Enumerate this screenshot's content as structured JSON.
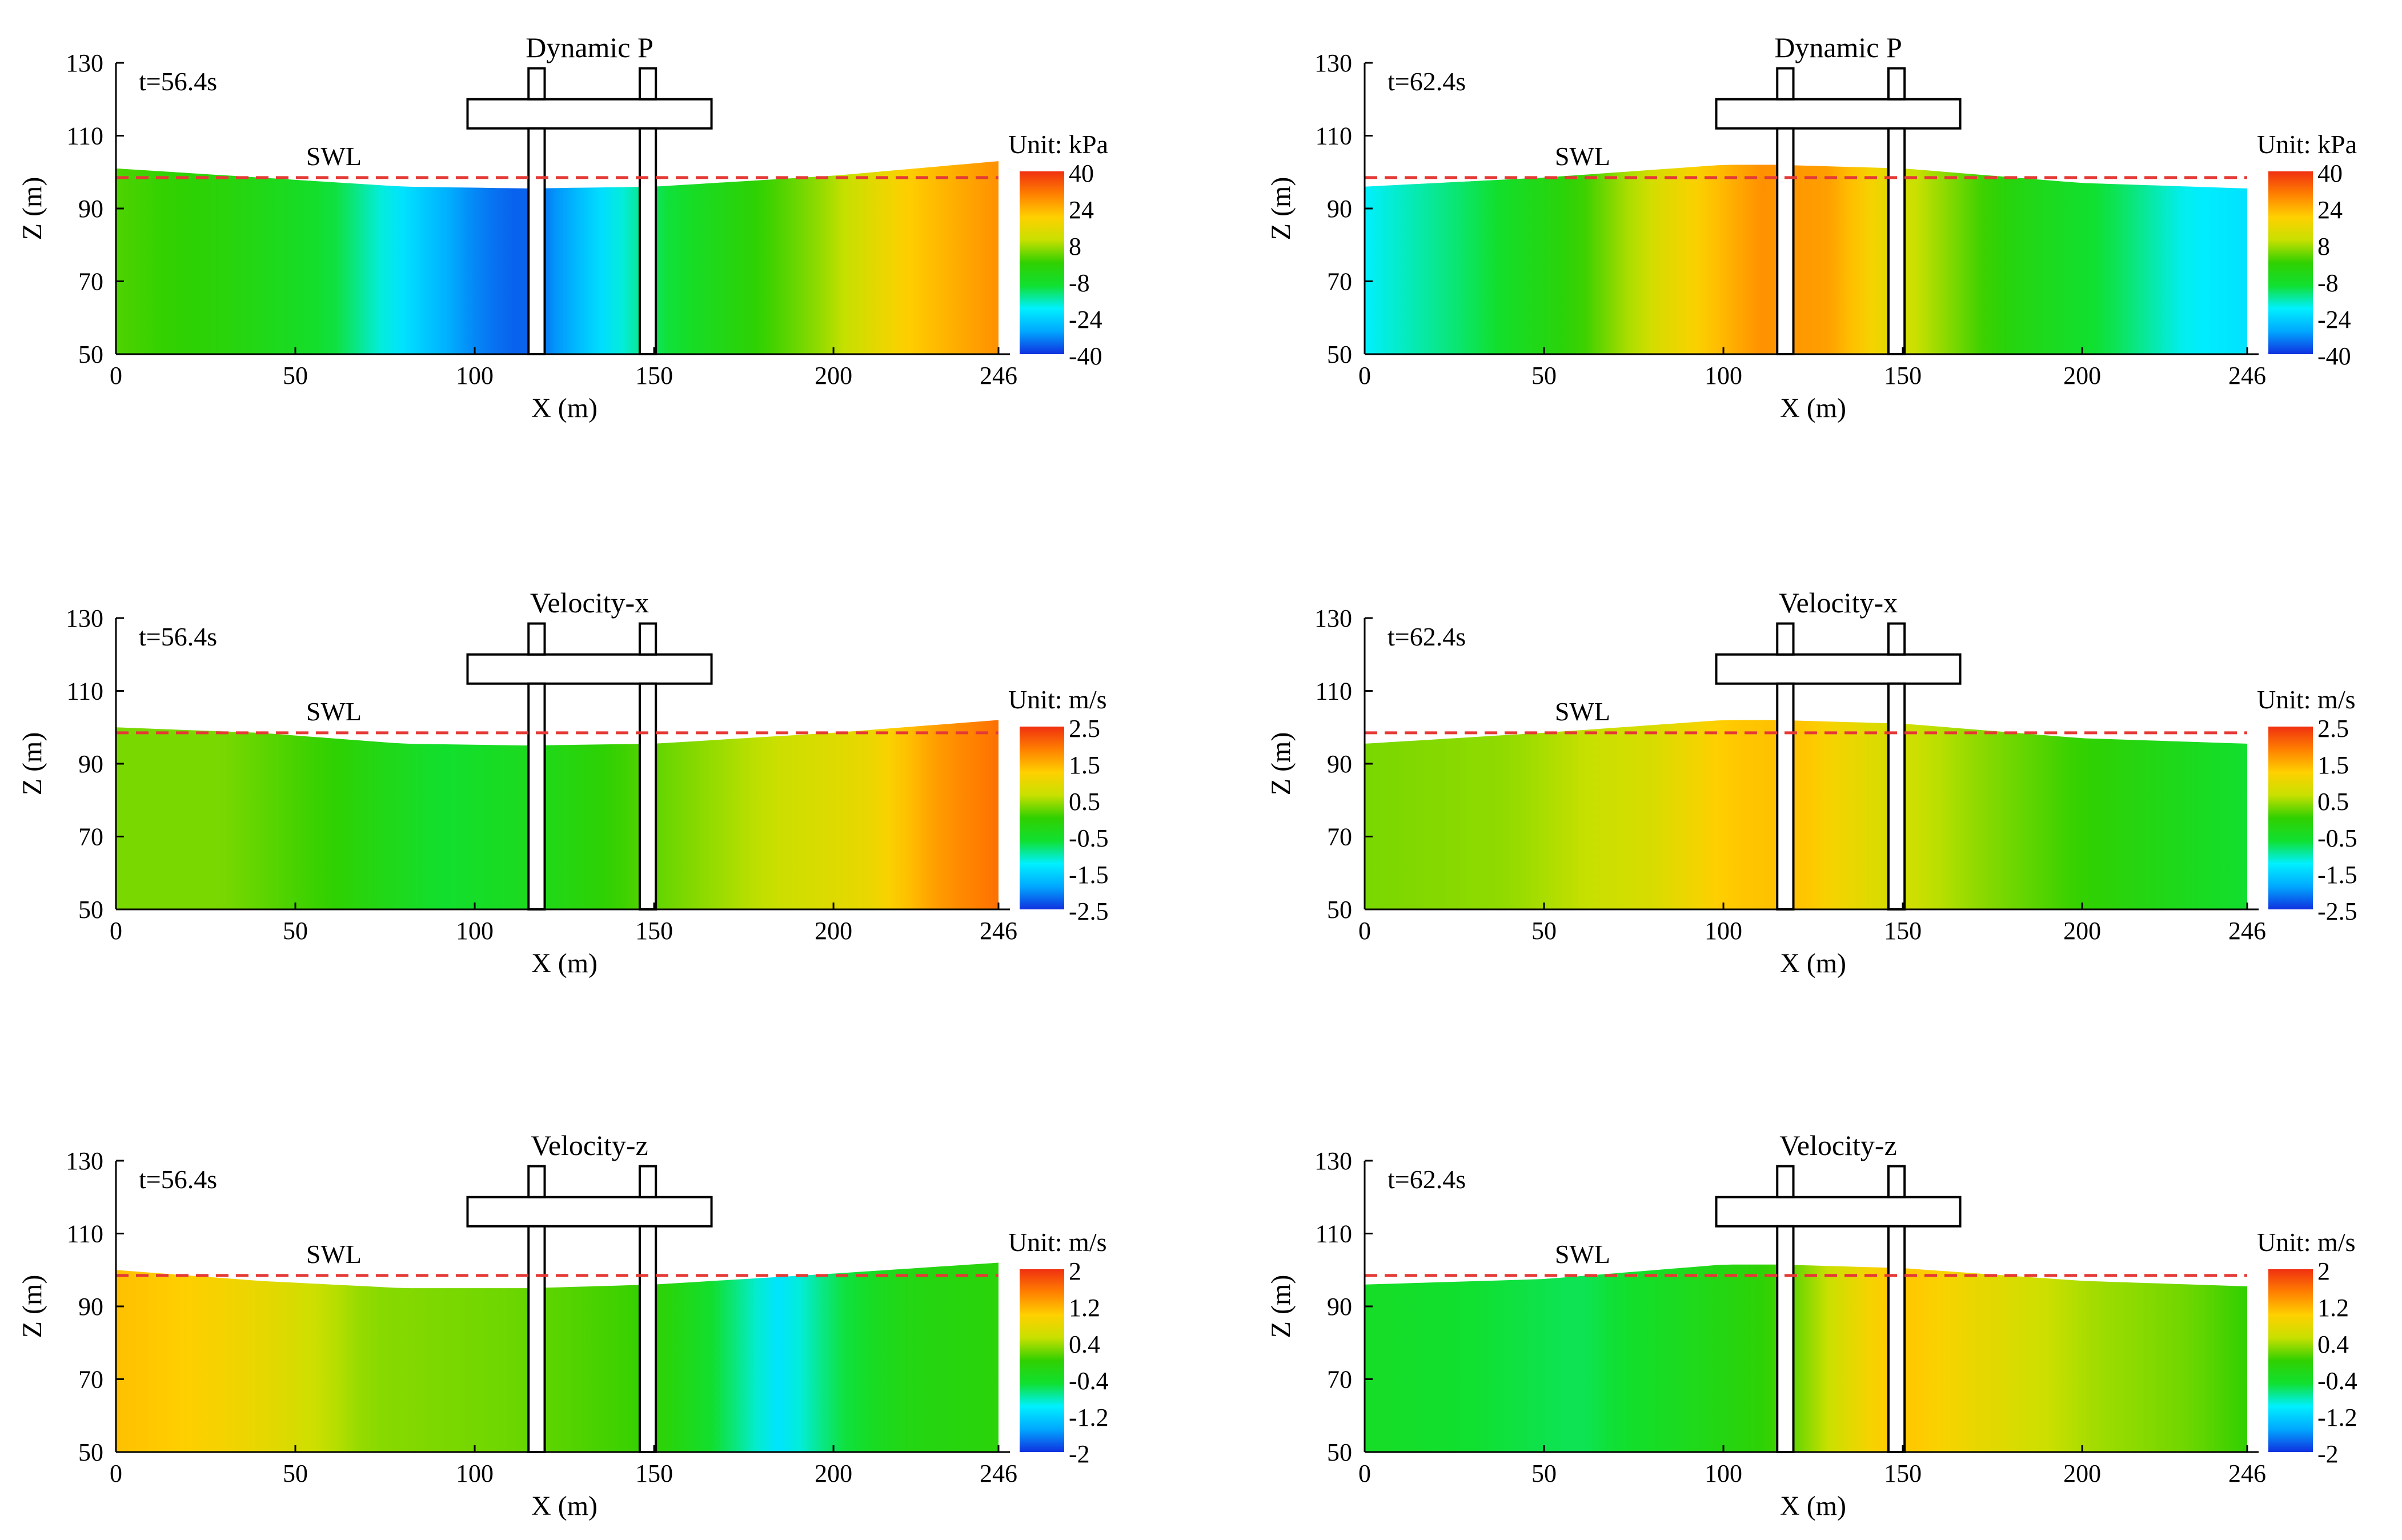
{
  "colors": {
    "swl_line": "#e53935",
    "axis": "#000000",
    "structure_fill": "#ffffff",
    "colormap": [
      "#1030e0",
      "#00a8ff",
      "#00f0ff",
      "#10e030",
      "#30d000",
      "#c8e000",
      "#ffd000",
      "#ff8000",
      "#f03010"
    ]
  },
  "labels": {
    "swl": "SWL",
    "xlabel": "X (m)",
    "ylabel": "Z (m)"
  },
  "chart_data": [
    {
      "type": "heatmap",
      "title": "Dynamic P",
      "time_label": "t=56.4s",
      "unit_label": "Unit: kPa",
      "xlabel": "X (m)",
      "ylabel": "Z (m)",
      "xlim": [
        0,
        246
      ],
      "ylim": [
        50,
        130
      ],
      "xticks": [
        "0",
        "50",
        "100",
        "150",
        "200",
        "246"
      ],
      "yticks": [
        "50",
        "70",
        "90",
        "110",
        "130"
      ],
      "colorbar": {
        "ticks": [
          "40",
          "24",
          "8",
          "-8",
          "-24",
          "-40"
        ],
        "vmin": -40,
        "vmax": 40
      },
      "swl": 98.5,
      "surface_x": [
        0,
        40,
        80,
        115,
        150,
        200,
        246
      ],
      "surface_z": [
        101,
        98.5,
        96,
        95.5,
        96,
        99,
        103
      ],
      "field_x": [
        0,
        30,
        60,
        80,
        100,
        115,
        150,
        180,
        200,
        220,
        246
      ],
      "field_values": [
        2,
        -2,
        -10,
        -22,
        -33,
        -37,
        -12,
        0,
        8,
        20,
        28
      ]
    },
    {
      "type": "heatmap",
      "title": "Dynamic P",
      "time_label": "t=62.4s",
      "unit_label": "Unit: kPa",
      "xlabel": "X (m)",
      "ylabel": "Z (m)",
      "xlim": [
        0,
        246
      ],
      "ylim": [
        50,
        130
      ],
      "xticks": [
        "0",
        "50",
        "100",
        "150",
        "200",
        "246"
      ],
      "yticks": [
        "50",
        "70",
        "90",
        "110",
        "130"
      ],
      "colorbar": {
        "ticks": [
          "40",
          "24",
          "8",
          "-8",
          "-24",
          "-40"
        ],
        "vmin": -40,
        "vmax": 40
      },
      "swl": 98.5,
      "surface_x": [
        0,
        50,
        100,
        115,
        150,
        200,
        246
      ],
      "surface_z": [
        96,
        98.5,
        102,
        102,
        101,
        97,
        95.5
      ],
      "field_x": [
        0,
        30,
        60,
        90,
        110,
        130,
        150,
        180,
        210,
        230,
        246
      ],
      "field_values": [
        -20,
        -12,
        0,
        18,
        28,
        26,
        12,
        -3,
        -12,
        -20,
        -22
      ]
    },
    {
      "type": "heatmap",
      "title": "Velocity-x",
      "time_label": "t=56.4s",
      "unit_label": "Unit: m/s",
      "xlabel": "X (m)",
      "ylabel": "Z (m)",
      "xlim": [
        0,
        246
      ],
      "ylim": [
        50,
        130
      ],
      "xticks": [
        "0",
        "50",
        "100",
        "150",
        "200",
        "246"
      ],
      "yticks": [
        "50",
        "70",
        "90",
        "110",
        "130"
      ],
      "colorbar": {
        "ticks": [
          "2.5",
          "1.5",
          "0.5",
          "-0.5",
          "-1.5",
          "-2.5"
        ],
        "vmin": -2.5,
        "vmax": 2.5
      },
      "swl": 98.5,
      "surface_x": [
        0,
        40,
        80,
        115,
        150,
        200,
        246
      ],
      "surface_z": [
        100,
        98.5,
        95.5,
        95,
        95.5,
        98.5,
        102
      ],
      "field_x": [
        0,
        30,
        60,
        90,
        115,
        150,
        180,
        210,
        230,
        246
      ],
      "field_values": [
        0.3,
        0.3,
        0.0,
        -0.6,
        -0.4,
        0.2,
        0.6,
        1.0,
        1.7,
        2.0
      ]
    },
    {
      "type": "heatmap",
      "title": "Velocity-x",
      "time_label": "t=62.4s",
      "unit_label": "Unit: m/s",
      "xlabel": "X (m)",
      "ylabel": "Z (m)",
      "xlim": [
        0,
        246
      ],
      "ylim": [
        50,
        130
      ],
      "xticks": [
        "0",
        "50",
        "100",
        "150",
        "200",
        "246"
      ],
      "yticks": [
        "50",
        "70",
        "90",
        "110",
        "130"
      ],
      "colorbar": {
        "ticks": [
          "2.5",
          "1.5",
          "0.5",
          "-0.5",
          "-1.5",
          "-2.5"
        ],
        "vmin": -2.5,
        "vmax": 2.5
      },
      "swl": 98.5,
      "surface_x": [
        0,
        50,
        100,
        115,
        150,
        200,
        246
      ],
      "surface_z": [
        95.5,
        98.5,
        102,
        102,
        101,
        97,
        95.5
      ],
      "field_x": [
        0,
        40,
        80,
        100,
        120,
        140,
        170,
        200,
        230,
        246
      ],
      "field_values": [
        0.3,
        0.4,
        0.8,
        1.3,
        1.4,
        0.9,
        0.4,
        0.0,
        -0.4,
        -0.6
      ]
    },
    {
      "type": "heatmap",
      "title": "Velocity-z",
      "time_label": "t=56.4s",
      "unit_label": "Unit: m/s",
      "xlabel": "X (m)",
      "ylabel": "Z (m)",
      "xlim": [
        0,
        246
      ],
      "ylim": [
        50,
        130
      ],
      "xticks": [
        "0",
        "50",
        "100",
        "150",
        "200",
        "246"
      ],
      "yticks": [
        "50",
        "70",
        "90",
        "110",
        "130"
      ],
      "colorbar": {
        "ticks": [
          "2",
          "1.2",
          "0.4",
          "-0.4",
          "-1.2",
          "-2"
        ],
        "vmin": -2,
        "vmax": 2
      },
      "swl": 98.5,
      "surface_x": [
        0,
        40,
        80,
        115,
        150,
        200,
        246
      ],
      "surface_z": [
        100,
        97,
        95,
        95,
        96,
        99,
        102
      ],
      "field_x": [
        0,
        20,
        40,
        70,
        110,
        150,
        170,
        185,
        200,
        220,
        246
      ],
      "field_values": [
        1.1,
        1.0,
        0.8,
        0.3,
        0.2,
        0.0,
        -0.6,
        -1.1,
        -0.6,
        -0.2,
        -0.1
      ]
    },
    {
      "type": "heatmap",
      "title": "Velocity-z",
      "time_label": "t=62.4s",
      "unit_label": "Unit: m/s",
      "xlabel": "X (m)",
      "ylabel": "Z (m)",
      "xlim": [
        0,
        246
      ],
      "ylim": [
        50,
        130
      ],
      "xticks": [
        "0",
        "50",
        "100",
        "150",
        "200",
        "246"
      ],
      "yticks": [
        "50",
        "70",
        "90",
        "110",
        "130"
      ],
      "colorbar": {
        "ticks": [
          "2",
          "1.2",
          "0.4",
          "-0.4",
          "-1.2",
          "-2"
        ],
        "vmin": -2,
        "vmax": 2
      },
      "swl": 98.5,
      "surface_x": [
        0,
        50,
        100,
        115,
        150,
        200,
        246
      ],
      "surface_z": [
        96,
        97.5,
        101.5,
        101.5,
        100.5,
        97,
        95.5
      ],
      "field_x": [
        0,
        30,
        60,
        90,
        115,
        140,
        150,
        170,
        200,
        230,
        246
      ],
      "field_values": [
        -0.4,
        -0.5,
        -0.6,
        -0.3,
        0.0,
        0.9,
        1.1,
        0.8,
        0.4,
        0.2,
        0.0
      ]
    }
  ]
}
